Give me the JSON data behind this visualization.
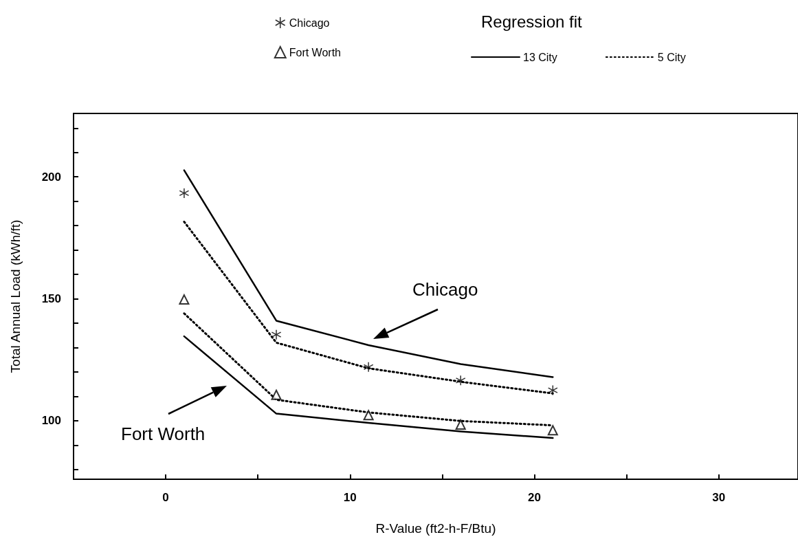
{
  "chart_data": {
    "type": "scatter",
    "xlabel": "R-Value (ft2-h-F/Btu)",
    "ylabel": "Total Annual Load (kWh/ft)",
    "legend_title": "Regression fit",
    "legend": "top",
    "x": [
      1,
      6,
      11,
      16,
      21
    ],
    "xlim": [
      -5,
      34.3
    ],
    "ylim": [
      76,
      226
    ],
    "xticks": [
      0,
      {
        "value": 5,
        "label": null
      },
      10,
      {
        "value": 15,
        "label": null
      },
      20,
      {
        "value": 25,
        "label": null
      },
      30
    ],
    "yticks": [
      {
        "value": 80,
        "label": null
      },
      {
        "value": 90,
        "label": null
      },
      100,
      {
        "value": 110,
        "label": null
      },
      {
        "value": 120,
        "label": null
      },
      {
        "value": 130,
        "label": null
      },
      {
        "value": 140,
        "label": null
      },
      150,
      {
        "value": 160,
        "label": null
      },
      {
        "value": 170,
        "label": null
      },
      {
        "value": 180,
        "label": null
      },
      {
        "value": 190,
        "label": null
      },
      200,
      {
        "value": 210,
        "label": null
      },
      {
        "value": 220,
        "label": null
      }
    ],
    "series": [
      {
        "name": "Chicago",
        "marker": "cross",
        "color": "#000000",
        "values": [
          193.3,
          135.3,
          122.0,
          116.5,
          112.5
        ]
      },
      {
        "name": "Fort Worth",
        "marker": "triangle",
        "color": "#000000",
        "values": [
          149.7,
          110.6,
          102.3,
          98.4,
          96.1
        ]
      },
      {
        "name": "13 City",
        "type": "line",
        "marker": "none",
        "line_style": "solid",
        "color": "#000000",
        "values": [
          202.7,
          141.0,
          131.0,
          123.2,
          117.9
        ]
      },
      {
        "type": "line",
        "marker": "none",
        "line_style": "solid",
        "color": "#000000",
        "values": [
          134.6,
          102.9,
          99.1,
          95.6,
          92.9
        ]
      },
      {
        "name": "5 City",
        "type": "line",
        "marker": "none",
        "line_style": "dotted",
        "color": "#000000",
        "values": [
          181.6,
          132.0,
          121.5,
          116.0,
          111.2
        ]
      },
      {
        "type": "line",
        "marker": "none",
        "line_style": "dotted",
        "color": "#000000",
        "values": [
          144.0,
          108.6,
          103.4,
          99.9,
          98.1
        ]
      }
    ],
    "annotations": [
      "Chicago",
      "Fort Worth"
    ]
  }
}
